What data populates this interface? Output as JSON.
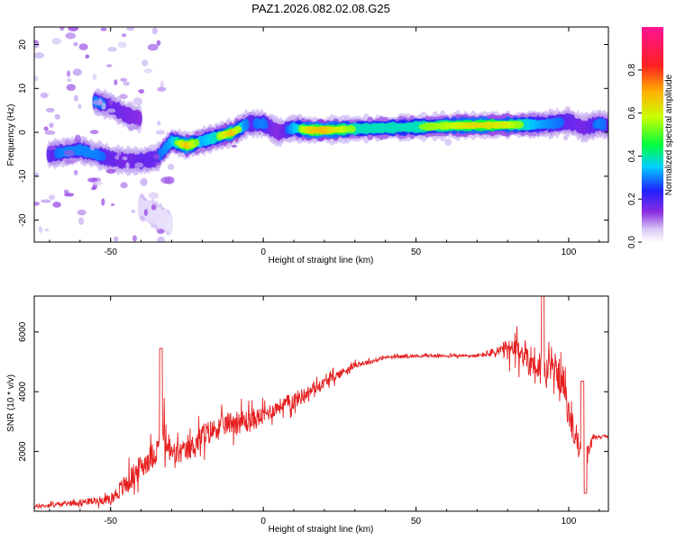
{
  "figure_title": "PAZ1.2026.082.02.08.G25",
  "colors": {
    "series_line": "#e52020",
    "axis": "#000000",
    "background": "#ffffff"
  },
  "chart_data": [
    {
      "id": "spectrogram",
      "type": "heatmap",
      "title": "PAZ1.2026.082.02.08.G25",
      "xlabel": "Height of straight line (km)",
      "ylabel": "Frequency (Hz)",
      "xlim": [
        -75,
        113
      ],
      "ylim": [
        -25,
        24
      ],
      "xticks": [
        -50,
        0,
        50,
        100
      ],
      "yticks": [
        -20,
        -10,
        0,
        10,
        20
      ],
      "colorbar": {
        "label": "Normalized spectral amplitude",
        "range": [
          0,
          1
        ],
        "ticks": [
          "0.0",
          "0.2",
          "0.4",
          "0.6",
          "0.8"
        ],
        "tick_values": [
          0,
          0.2,
          0.4,
          0.6,
          0.8
        ],
        "colormap": [
          "#ffffff",
          "#c9b6f2",
          "#8a2be2",
          "#1f22ff",
          "#00cfff",
          "#00ff40",
          "#c8ff00",
          "#ffb000",
          "#ff2020",
          "#ff1493"
        ]
      },
      "ridge": {
        "x": [
          -70,
          -65,
          -60,
          -55,
          -50,
          -45,
          -40,
          -35,
          -30,
          -25,
          -20,
          -15,
          -10,
          -5,
          0,
          5,
          10,
          15,
          20,
          30,
          40,
          50,
          60,
          70,
          80,
          90,
          95,
          100,
          105,
          110,
          113
        ],
        "frequency": [
          -5,
          -4.5,
          -4,
          -5,
          -6,
          -6.5,
          -6.5,
          -6,
          -2,
          -3,
          -2,
          -1,
          0,
          2,
          2,
          0,
          1,
          0.5,
          0.5,
          0.8,
          1,
          1.2,
          1.5,
          1.6,
          1.7,
          1.8,
          2,
          2.5,
          1,
          2,
          1.5
        ],
        "amplitude": [
          0.5,
          0.55,
          0.55,
          0.55,
          0.5,
          0.45,
          0.5,
          0.5,
          0.6,
          0.9,
          0.6,
          0.7,
          0.9,
          0.5,
          0.55,
          0.4,
          0.6,
          0.85,
          0.9,
          0.7,
          0.7,
          0.7,
          0.75,
          0.85,
          0.8,
          0.6,
          0.55,
          0.5,
          0.45,
          0.55,
          0.5
        ]
      },
      "secondary_ridges": [
        {
          "x": [
            -55,
            -50,
            -45,
            -40
          ],
          "frequency": [
            7,
            6,
            4,
            3
          ],
          "amplitude": [
            0.55,
            0.5,
            0.45,
            0.4
          ]
        },
        {
          "x": [
            -40,
            -35,
            -30
          ],
          "frequency": [
            -17,
            -19,
            -21
          ],
          "amplitude": [
            0.2,
            0.18,
            0.15
          ]
        }
      ]
    },
    {
      "id": "snr",
      "type": "line",
      "xlabel": "Height of straight line (km)",
      "ylabel": "SNR (10 * v/v)",
      "xlim": [
        -75,
        113
      ],
      "ylim": [
        0,
        7200
      ],
      "xticks": [
        -50,
        0,
        50,
        100
      ],
      "yticks": [
        2000,
        4000,
        6000
      ],
      "envelope": {
        "x": [
          -75,
          -70,
          -60,
          -50,
          -45,
          -40,
          -35,
          -34,
          -33,
          -30,
          -25,
          -20,
          -15,
          -10,
          -5,
          0,
          5,
          10,
          15,
          20,
          25,
          30,
          35,
          40,
          50,
          60,
          70,
          75,
          80,
          85,
          88,
          90,
          92,
          95,
          98,
          100,
          103,
          105,
          106,
          108,
          110,
          113
        ],
        "mean": [
          150,
          200,
          300,
          400,
          900,
          1500,
          2000,
          2400,
          2600,
          1900,
          2000,
          2500,
          2800,
          3000,
          3000,
          3200,
          3500,
          3700,
          4000,
          4300,
          4600,
          4900,
          5000,
          5150,
          5200,
          5200,
          5200,
          5300,
          5400,
          5300,
          5000,
          4900,
          4600,
          4800,
          4400,
          3200,
          2300,
          1400,
          1800,
          2500,
          2500,
          2500
        ],
        "noise": [
          150,
          150,
          200,
          300,
          800,
          800,
          900,
          300,
          1500,
          900,
          700,
          900,
          700,
          800,
          800,
          600,
          500,
          600,
          400,
          350,
          300,
          200,
          150,
          120,
          100,
          100,
          100,
          300,
          700,
          1000,
          1200,
          1300,
          1100,
          900,
          1200,
          900,
          900,
          600,
          800,
          200,
          100,
          80
        ]
      },
      "spikes": [
        {
          "x": -33.5,
          "value": 5450
        },
        {
          "x": 91.5,
          "value": 7200
        },
        {
          "x": 104.5,
          "value": 4350
        },
        {
          "x": 105.5,
          "value": 600
        }
      ]
    }
  ]
}
